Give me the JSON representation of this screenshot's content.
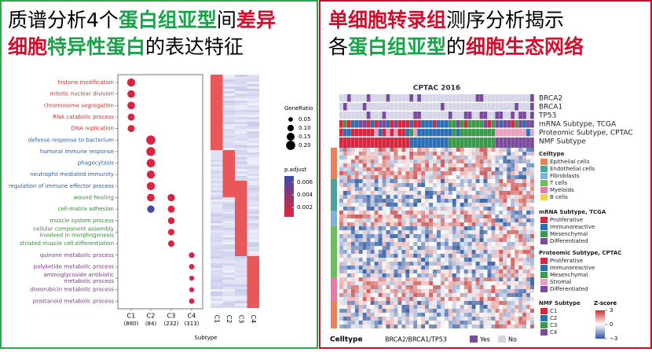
{
  "left_title": [
    [
      {
        "text": "质谱分析4个",
        "color": "#000000"
      },
      {
        "text": "蛋白组亚型",
        "color": "#1aa34a"
      },
      {
        "text": "间",
        "color": "#000000"
      },
      {
        "text": "差异",
        "color": "#d0102e"
      }
    ],
    [
      {
        "text": "细胞",
        "color": "#d0102e"
      },
      {
        "text": "特异性蛋白",
        "color": "#1aa34a"
      },
      {
        "text": "的表达特征",
        "color": "#000000"
      }
    ]
  ],
  "right_title": [
    [
      {
        "text": "单细胞转录组",
        "color": "#d0102e"
      },
      {
        "text": "测序分析揭示",
        "color": "#000000"
      }
    ],
    [
      {
        "text": "各",
        "color": "#000000"
      },
      {
        "text": "蛋白组亚型",
        "color": "#1aa34a"
      },
      {
        "text": "的",
        "color": "#000000"
      },
      {
        "text": "细胞生态网络",
        "color": "#d0102e"
      }
    ]
  ],
  "chart_data": {
    "type": "dotplot",
    "terms": [
      [
        "histone modification"
      ],
      [
        "mitotic nuclear division"
      ],
      [
        "chromosome segregation"
      ],
      [
        "RNA catabolic process"
      ],
      [
        "DNA replication"
      ],
      [
        "defense response to bacterium"
      ],
      [
        "humoral immune response"
      ],
      [
        "phagocytosis"
      ],
      [
        "neutrophil mediated immunity"
      ],
      [
        "regulation of immune effector process"
      ],
      [
        "wound healing"
      ],
      [
        "cell-matrix adhesion"
      ],
      [
        "muscle system process"
      ],
      [
        "cellular component assembly",
        "involved in morphogenesis"
      ],
      [
        "striated muscle cell differentiation"
      ],
      [
        "quinone metabolic process"
      ],
      [
        "polyketide metabolic process"
      ],
      [
        "aminoglycoside antibiotic",
        "metabolic process"
      ],
      [
        "doxorubicin metabolic process"
      ],
      [
        "prostanoid metabolic process"
      ]
    ],
    "term_colors": [
      "#c0392b",
      "#c0392b",
      "#c0392b",
      "#c0392b",
      "#c0392b",
      "#2f5d9e",
      "#2f5d9e",
      "#2f5d9e",
      "#2f5d9e",
      "#2f5d9e",
      "#3a8a3a",
      "#3a8a3a",
      "#3a8a3a",
      "#3a8a3a",
      "#3a8a3a",
      "#7a3a8a",
      "#7a3a8a",
      "#7a3a8a",
      "#7a3a8a",
      "#7a3a8a"
    ],
    "subtypes": [
      "C1",
      "C2",
      "C3",
      "C4"
    ],
    "subtype_counts": [
      "(880)",
      "(84)",
      "(232)",
      "(313)"
    ],
    "x_label": "Subtype",
    "gene_ratio": [
      [
        0.16,
        0.14,
        0.14,
        0.12,
        0.12,
        null,
        null,
        null,
        null,
        null,
        null,
        null,
        null,
        null,
        null,
        null,
        null,
        null,
        null,
        null
      ],
      [
        null,
        null,
        null,
        null,
        null,
        0.2,
        0.19,
        0.17,
        0.16,
        0.16,
        0.14,
        0.13,
        null,
        null,
        null,
        null,
        null,
        null,
        null,
        null
      ],
      [
        null,
        null,
        null,
        null,
        null,
        null,
        null,
        null,
        null,
        null,
        0.13,
        0.12,
        0.11,
        0.1,
        0.1,
        null,
        null,
        null,
        null,
        null
      ],
      [
        null,
        null,
        null,
        null,
        null,
        null,
        null,
        null,
        null,
        null,
        null,
        null,
        null,
        null,
        null,
        0.08,
        0.07,
        0.06,
        0.06,
        0.07
      ]
    ],
    "p_adjust": [
      [
        0.001,
        0.001,
        0.001,
        0.001,
        0.001,
        null,
        null,
        null,
        null,
        null,
        null,
        null,
        null,
        null,
        null,
        null,
        null,
        null,
        null,
        null
      ],
      [
        null,
        null,
        null,
        null,
        null,
        0.001,
        0.001,
        0.001,
        0.001,
        0.001,
        0.001,
        0.0065,
        null,
        null,
        null,
        null,
        null,
        null,
        null,
        null
      ],
      [
        null,
        null,
        null,
        null,
        null,
        null,
        null,
        null,
        null,
        null,
        0.001,
        0.001,
        0.001,
        0.001,
        0.001,
        null,
        null,
        null,
        null,
        null
      ],
      [
        null,
        null,
        null,
        null,
        null,
        null,
        null,
        null,
        null,
        null,
        null,
        null,
        null,
        null,
        null,
        0.001,
        0.001,
        0.001,
        0.001,
        0.001
      ]
    ],
    "size_legend_title": "GeneRatio",
    "size_ticks": [
      0.05,
      {
        "value": 0.1,
        "label": "0.10"
      },
      0.15,
      {
        "value": 0.2,
        "label": "0.20"
      }
    ],
    "color_legend_title": "p.adjust",
    "color_lim": [
      0.0005,
      0.007
    ],
    "color_ticks": [
      0.006,
      0.004,
      0.002
    ],
    "color_low": "#e8203a",
    "color_high": "#3b4ba8"
  },
  "right_figure": {
    "title": "CPTAC 2016",
    "tracks": [
      "BRCA2",
      "BRCA1",
      "TP53",
      "mRNA Subtype, TCGA",
      "Proteomic Subtype, CPTAC",
      "NMF Subtype"
    ],
    "legends": [
      {
        "title": "Celltype",
        "items": [
          "Epithelial cells",
          "Endothelial cells",
          "Fibroblasts",
          "T cells",
          "Myeloids",
          "B cells"
        ],
        "colors": [
          "#e8825a",
          "#4aa39a",
          "#7fb2d8",
          "#6bbf59",
          "#e87aa8",
          "#f0d24a"
        ]
      },
      {
        "title": "mRNA Subtype, TCGA",
        "items": [
          "Proliferative",
          "Immunoreactive",
          "Mesenchymal",
          "Differentiated"
        ],
        "colors": [
          "#d7263d",
          "#2a6fb5",
          "#3a9a4a",
          "#7b4a9a"
        ]
      },
      {
        "title": "Proteomic Subtype, CPTAC",
        "items": [
          "Proliferative",
          "Immunoreactive",
          "Mesenchymal",
          "Stromal",
          "Differentiated"
        ],
        "colors": [
          "#d7263d",
          "#2a6fb5",
          "#3a9a4a",
          "#e8a0c0",
          "#7b4a9a"
        ]
      },
      {
        "title": "NMF Subtype",
        "items": [
          "C1",
          "C2",
          "C3",
          "C4"
        ],
        "colors": [
          "#d7263d",
          "#2a6fb5",
          "#3a9a4a",
          "#7b4a9a"
        ]
      }
    ],
    "zscore_title": "Z-score",
    "zscore_ticks": [
      3,
      0,
      {
        "value": -3,
        "label": "−3"
      }
    ],
    "bottom_celltype": "Celltype",
    "bottom_mutation": "BRCA2/BRCA1/TP53",
    "yes": "Yes",
    "no": "No"
  }
}
